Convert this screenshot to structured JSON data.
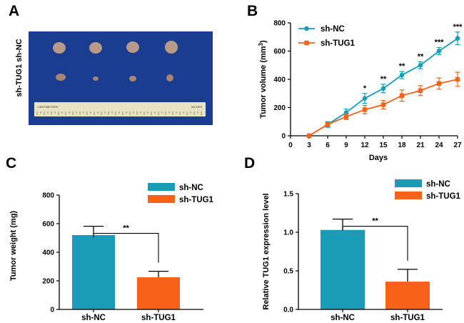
{
  "panels": {
    "a": {
      "letter": "A",
      "row_labels": [
        "sh-NC",
        "sh-TUG1"
      ],
      "ruler_left_text": "CENTIMETERS",
      "ruler_right_text": "INCHES",
      "colors": {
        "background": "#1a3d8f",
        "tumor_nc": "#b79a88",
        "tumor_tug1": "#a88474",
        "ruler": "#e9e3c4"
      }
    },
    "b": {
      "letter": "B"
    },
    "c": {
      "letter": "C"
    },
    "d": {
      "letter": "D"
    }
  },
  "colors": {
    "sh_nc": "#1a9bb6",
    "sh_tug1": "#f76218"
  },
  "chart_data": [
    {
      "panel": "B",
      "type": "line",
      "xlabel": "Days",
      "ylabel": "Tumor volume (mm3)",
      "ylabel_main": "Tumor volume (mm",
      "ylabel_sup": "3",
      "ylabel_close": ")",
      "xlim": [
        0,
        27
      ],
      "ylim": [
        0,
        800
      ],
      "xticks": [
        0,
        3,
        6,
        9,
        12,
        15,
        18,
        21,
        24,
        27
      ],
      "yticks": [
        0,
        200,
        400,
        600,
        800
      ],
      "x": [
        3,
        6,
        9,
        12,
        15,
        18,
        21,
        24,
        27
      ],
      "series": [
        {
          "name": "sh-NC",
          "marker": "circle",
          "values": [
            0,
            80,
            165,
            265,
            335,
            430,
            500,
            600,
            690
          ],
          "errors": [
            0,
            20,
            25,
            35,
            30,
            25,
            25,
            25,
            45
          ]
        },
        {
          "name": "sh-TUG1",
          "marker": "square",
          "values": [
            0,
            80,
            135,
            185,
            220,
            285,
            320,
            370,
            400
          ],
          "errors": [
            0,
            15,
            20,
            30,
            30,
            40,
            35,
            40,
            50
          ]
        }
      ],
      "annotations": [
        {
          "x": 12,
          "text": "*"
        },
        {
          "x": 15,
          "text": "**"
        },
        {
          "x": 18,
          "text": "**"
        },
        {
          "x": 21,
          "text": "**"
        },
        {
          "x": 24,
          "text": "***"
        },
        {
          "x": 27,
          "text": "***"
        }
      ],
      "legend": "top-left"
    },
    {
      "panel": "C",
      "type": "bar",
      "categories": [
        "sh-NC",
        "sh-TUG1"
      ],
      "values": [
        520,
        225
      ],
      "errors": [
        62,
        42
      ],
      "ylabel": "Tumor weight (mg)",
      "ylim": [
        0,
        800
      ],
      "yticks": [
        0,
        200,
        400,
        600,
        800
      ],
      "significance": "**",
      "legend": "top-right"
    },
    {
      "panel": "D",
      "type": "bar",
      "categories": [
        "sh-NC",
        "sh-TUG1"
      ],
      "values": [
        1.03,
        0.36
      ],
      "errors": [
        0.14,
        0.16
      ],
      "ylabel": "Relative TUG1 expression level",
      "ylim": [
        0,
        1.5
      ],
      "yticks": [
        "0.0",
        "0.5",
        "1.0",
        "1.5"
      ],
      "significance": "**",
      "legend": "top-right"
    }
  ]
}
